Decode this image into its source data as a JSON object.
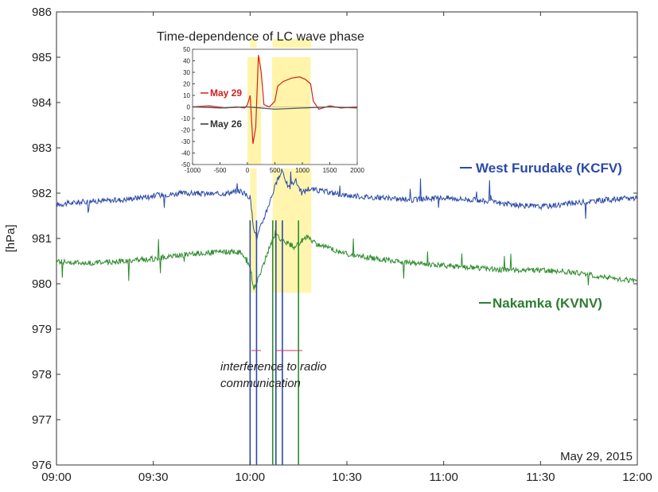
{
  "chart_data": [
    {
      "type": "line",
      "title": "",
      "ylabel": "[hPa]",
      "xlabel": "",
      "x_ticks": [
        "09:00",
        "09:30",
        "10:00",
        "10:30",
        "11:00",
        "11:30",
        "12:00"
      ],
      "y_ticks": [
        976,
        977,
        978,
        979,
        980,
        981,
        982,
        983,
        984,
        985,
        986
      ],
      "xlim": [
        "09:00",
        "12:00"
      ],
      "ylim": [
        976,
        986
      ],
      "grid": false,
      "date_label": "May 29, 2015",
      "annotation": "interference to radio communication",
      "annotation_lines": [
        "interference to radio",
        "communication"
      ],
      "series": [
        {
          "name": "West Furudake (KCFV)",
          "color": "#2b4aa8",
          "label_color": "#2b4aa8",
          "points": [
            [
              "09:00",
              981.75
            ],
            [
              "09:10",
              981.82
            ],
            [
              "09:20",
              981.85
            ],
            [
              "09:30",
              981.95
            ],
            [
              "09:40",
              982.0
            ],
            [
              "09:50",
              981.98
            ],
            [
              "09:57",
              982.05
            ],
            [
              "10:00",
              981.9
            ],
            [
              "10:01",
              981.3
            ],
            [
              "10:02",
              981.0
            ],
            [
              "10:04",
              981.4
            ],
            [
              "10:06",
              981.8
            ],
            [
              "10:08",
              982.2
            ],
            [
              "10:10",
              982.5
            ],
            [
              "10:12",
              982.1
            ],
            [
              "10:14",
              982.3
            ],
            [
              "10:16",
              982.0
            ],
            [
              "10:18",
              982.1
            ],
            [
              "10:22",
              982.05
            ],
            [
              "10:30",
              981.95
            ],
            [
              "10:40",
              981.9
            ],
            [
              "10:50",
              981.85
            ],
            [
              "11:00",
              981.9
            ],
            [
              "11:10",
              981.85
            ],
            [
              "11:20",
              981.75
            ],
            [
              "11:30",
              981.7
            ],
            [
              "11:40",
              981.78
            ],
            [
              "11:50",
              981.85
            ],
            [
              "12:00",
              981.9
            ]
          ]
        },
        {
          "name": "Nakamka (KVNV)",
          "color": "#2e8b2e",
          "label_color": "#2e7d32",
          "points": [
            [
              "09:00",
              980.5
            ],
            [
              "09:10",
              980.45
            ],
            [
              "09:20",
              980.5
            ],
            [
              "09:30",
              980.55
            ],
            [
              "09:40",
              980.65
            ],
            [
              "09:50",
              980.7
            ],
            [
              "09:57",
              980.7
            ],
            [
              "10:00",
              980.4
            ],
            [
              "10:01",
              979.9
            ],
            [
              "10:02",
              980.0
            ],
            [
              "10:04",
              980.4
            ],
            [
              "10:06",
              980.8
            ],
            [
              "10:08",
              981.15
            ],
            [
              "10:09",
              981.0
            ],
            [
              "10:14",
              980.8
            ],
            [
              "10:16",
              980.95
            ],
            [
              "10:18",
              981.05
            ],
            [
              "10:20",
              980.9
            ],
            [
              "10:30",
              980.65
            ],
            [
              "10:40",
              980.55
            ],
            [
              "10:50",
              980.45
            ],
            [
              "11:00",
              980.4
            ],
            [
              "11:10",
              980.35
            ],
            [
              "11:20",
              980.3
            ],
            [
              "11:30",
              980.3
            ],
            [
              "11:40",
              980.25
            ],
            [
              "11:50",
              980.15
            ],
            [
              "12:00",
              980.05
            ]
          ]
        }
      ],
      "highlight_windows": [
        [
          "10:00",
          "10:02"
        ],
        [
          "10:07",
          "10:19"
        ]
      ],
      "dropouts": [
        {
          "series": "West Furudake (KCFV)",
          "times": [
            "10:00",
            "10:02",
            "10:08",
            "10:10"
          ]
        },
        {
          "series": "Nakamka (KVNV)",
          "times": [
            "10:07",
            "10:15"
          ]
        }
      ]
    },
    {
      "type": "line",
      "title": "Time-dependence of LC wave phase",
      "xlabel": "",
      "ylabel": "",
      "xlim": [
        -1000,
        2000
      ],
      "ylim": [
        -50,
        50
      ],
      "x_ticks": [
        "-1000",
        "-500",
        "0",
        "500",
        "1000",
        "1500",
        "2000"
      ],
      "y_ticks": [
        "50",
        "40",
        "30",
        "20",
        "10",
        "0",
        "-10",
        "-20",
        "-30",
        "-40",
        "-50"
      ],
      "grid": false,
      "highlight_windows": [
        [
          0,
          250
        ],
        [
          450,
          1150
        ]
      ],
      "series": [
        {
          "name": "May 29",
          "color": "#d32020",
          "x": [
            -1000,
            -700,
            -400,
            -200,
            -50,
            0,
            50,
            100,
            150,
            200,
            250,
            300,
            400,
            500,
            550,
            650,
            800,
            950,
            1050,
            1150,
            1200,
            1300,
            1500,
            1700,
            2000
          ],
          "y": [
            0,
            1,
            -1,
            0,
            -1,
            2,
            10,
            -32,
            -18,
            45,
            30,
            2,
            0,
            5,
            18,
            22,
            25,
            26,
            24,
            20,
            5,
            -2,
            1,
            -1,
            0
          ]
        },
        {
          "name": "May 26",
          "color": "#555555",
          "x": [
            -1000,
            -500,
            0,
            500,
            1000,
            1500,
            2000
          ],
          "y": [
            0,
            -1,
            0,
            -2,
            -1,
            0,
            -1
          ]
        }
      ]
    }
  ]
}
